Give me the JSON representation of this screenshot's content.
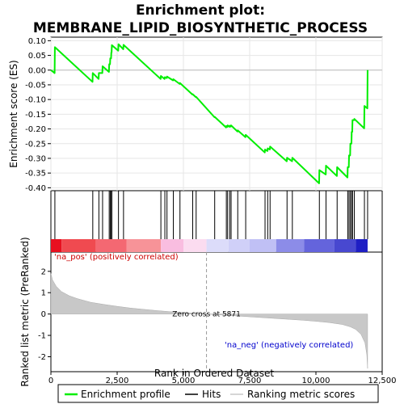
{
  "title_line1": "Enrichment plot:",
  "title_line2": "MEMBRANE_LIPID_BIOSYNTHETIC_PROCESS",
  "top_ylabel": "Enrichment score (ES)",
  "bottom_ylabel": "Ranked list metric (PreRanked)",
  "xlabel": "Rank in Ordered Dataset",
  "pos_label": "'na_pos' (positively correlated)",
  "neg_label": "'na_neg' (negatively correlated)",
  "zero_cross_label": "Zero cross at 5871",
  "legend": {
    "enrichment": "Enrichment profile",
    "hits": "Hits",
    "ranking": "Ranking metric scores"
  },
  "colors": {
    "enrichment": "#00ee00",
    "hits": "#000000",
    "ranking_fill": "#c8c8c8",
    "pos_label": "#cc0000",
    "neg_label": "#0000cc"
  },
  "chart_data": {
    "type": "line",
    "x_ticks": [
      "0",
      "2,500",
      "5,000",
      "7,500",
      "10,000",
      "12,500"
    ],
    "x_tick_values": [
      0,
      2500,
      5000,
      7500,
      10000,
      12500
    ],
    "xlim": [
      0,
      12500
    ],
    "n_genes": 11950,
    "zero_cross": 5871,
    "es_yticks": [
      "0.10",
      "0.05",
      "0.00",
      "-0.05",
      "-0.10",
      "-0.15",
      "-0.20",
      "-0.25",
      "-0.30",
      "-0.35",
      "-0.40"
    ],
    "es_ytick_values": [
      0.1,
      0.05,
      0.0,
      -0.05,
      -0.1,
      -0.15,
      -0.2,
      -0.25,
      -0.3,
      -0.35,
      -0.4
    ],
    "es_ylim": [
      -0.41,
      0.112
    ],
    "metric_yticks": [
      "2",
      "1",
      "0",
      "-1",
      "-2"
    ],
    "metric_ytick_values": [
      2,
      1,
      0,
      -1,
      -2
    ],
    "metric_ylim": [
      -2.7,
      2.9
    ],
    "hits": [
      150,
      1580,
      1810,
      1950,
      2200,
      2240,
      2280,
      2300,
      2550,
      2740,
      4150,
      4300,
      4380,
      4620,
      4870,
      5350,
      5480,
      6180,
      6620,
      6670,
      6750,
      6800,
      7050,
      7350,
      8080,
      8180,
      8270,
      8910,
      9110,
      10130,
      10380,
      10800,
      11200,
      11250,
      11300,
      11350,
      11380,
      11450,
      11830,
      11950
    ],
    "es_points": [
      [
        0,
        0.0
      ],
      [
        140,
        -0.01
      ],
      [
        150,
        0.078
      ],
      [
        1570,
        -0.04
      ],
      [
        1580,
        -0.01
      ],
      [
        1800,
        -0.03
      ],
      [
        1810,
        -0.01
      ],
      [
        1940,
        -0.01
      ],
      [
        1950,
        0.013
      ],
      [
        2190,
        -0.006
      ],
      [
        2200,
        0.02
      ],
      [
        2230,
        0.02
      ],
      [
        2240,
        0.04
      ],
      [
        2270,
        0.04
      ],
      [
        2280,
        0.06
      ],
      [
        2290,
        0.06
      ],
      [
        2300,
        0.085
      ],
      [
        2540,
        0.066
      ],
      [
        2550,
        0.088
      ],
      [
        2730,
        0.071
      ],
      [
        2740,
        0.086
      ],
      [
        4140,
        -0.03
      ],
      [
        4150,
        -0.02
      ],
      [
        4290,
        -0.03
      ],
      [
        4300,
        -0.024
      ],
      [
        4370,
        -0.027
      ],
      [
        4380,
        -0.022
      ],
      [
        4610,
        -0.035
      ],
      [
        4620,
        -0.031
      ],
      [
        4860,
        -0.047
      ],
      [
        4870,
        -0.044
      ],
      [
        5340,
        -0.083
      ],
      [
        5350,
        -0.082
      ],
      [
        5470,
        -0.092
      ],
      [
        5480,
        -0.091
      ],
      [
        6170,
        -0.16
      ],
      [
        6180,
        -0.159
      ],
      [
        6610,
        -0.195
      ],
      [
        6620,
        -0.19
      ],
      [
        6660,
        -0.193
      ],
      [
        6670,
        -0.188
      ],
      [
        6740,
        -0.193
      ],
      [
        6750,
        -0.189
      ],
      [
        6790,
        -0.192
      ],
      [
        6800,
        -0.188
      ],
      [
        7040,
        -0.209
      ],
      [
        7050,
        -0.205
      ],
      [
        7340,
        -0.228
      ],
      [
        7350,
        -0.22
      ],
      [
        8070,
        -0.28
      ],
      [
        8080,
        -0.27
      ],
      [
        8170,
        -0.275
      ],
      [
        8180,
        -0.266
      ],
      [
        8260,
        -0.27
      ],
      [
        8270,
        -0.26
      ],
      [
        8900,
        -0.31
      ],
      [
        8910,
        -0.298
      ],
      [
        9100,
        -0.31
      ],
      [
        9110,
        -0.298
      ],
      [
        10120,
        -0.385
      ],
      [
        10130,
        -0.34
      ],
      [
        10370,
        -0.355
      ],
      [
        10380,
        -0.325
      ],
      [
        10790,
        -0.36
      ],
      [
        10800,
        -0.33
      ],
      [
        11190,
        -0.365
      ],
      [
        11200,
        -0.33
      ],
      [
        11240,
        -0.33
      ],
      [
        11250,
        -0.29
      ],
      [
        11290,
        -0.29
      ],
      [
        11300,
        -0.25
      ],
      [
        11340,
        -0.25
      ],
      [
        11350,
        -0.21
      ],
      [
        11370,
        -0.21
      ],
      [
        11380,
        -0.17
      ],
      [
        11440,
        -0.17
      ],
      [
        11450,
        -0.166
      ],
      [
        11820,
        -0.198
      ],
      [
        11830,
        -0.122
      ],
      [
        11940,
        -0.13
      ],
      [
        11950,
        0.0
      ]
    ],
    "metric_points": [
      [
        0,
        1.9
      ],
      [
        60,
        1.6
      ],
      [
        200,
        1.3
      ],
      [
        400,
        1.05
      ],
      [
        700,
        0.85
      ],
      [
        1000,
        0.72
      ],
      [
        1500,
        0.55
      ],
      [
        2000,
        0.45
      ],
      [
        2500,
        0.36
      ],
      [
        3000,
        0.28
      ],
      [
        3500,
        0.22
      ],
      [
        4000,
        0.16
      ],
      [
        4500,
        0.11
      ],
      [
        5000,
        0.07
      ],
      [
        5500,
        0.03
      ],
      [
        5871,
        0.0
      ],
      [
        6500,
        -0.05
      ],
      [
        7000,
        -0.09
      ],
      [
        7500,
        -0.13
      ],
      [
        8000,
        -0.17
      ],
      [
        8500,
        -0.21
      ],
      [
        9000,
        -0.25
      ],
      [
        9500,
        -0.29
      ],
      [
        10000,
        -0.34
      ],
      [
        10500,
        -0.4
      ],
      [
        11000,
        -0.49
      ],
      [
        11300,
        -0.6
      ],
      [
        11500,
        -0.72
      ],
      [
        11700,
        -0.95
      ],
      [
        11850,
        -1.35
      ],
      [
        11920,
        -1.9
      ],
      [
        11950,
        -2.55
      ]
    ],
    "color_band": [
      [
        0,
        400,
        "#e81020"
      ],
      [
        400,
        1700,
        "#f04a50"
      ],
      [
        1700,
        2850,
        "#f46872"
      ],
      [
        2850,
        4150,
        "#f79398"
      ],
      [
        4150,
        5000,
        "#f9bde0"
      ],
      [
        5000,
        5871,
        "#fbdcf0"
      ],
      [
        5871,
        6700,
        "#dcdcfa"
      ],
      [
        6700,
        7500,
        "#d0d0f8"
      ],
      [
        7500,
        8500,
        "#c0c0f5"
      ],
      [
        8500,
        9550,
        "#8c8ce8"
      ],
      [
        9550,
        10700,
        "#6464dc"
      ],
      [
        10700,
        11500,
        "#4848d0"
      ],
      [
        11500,
        11950,
        "#1e1ec4"
      ]
    ]
  }
}
